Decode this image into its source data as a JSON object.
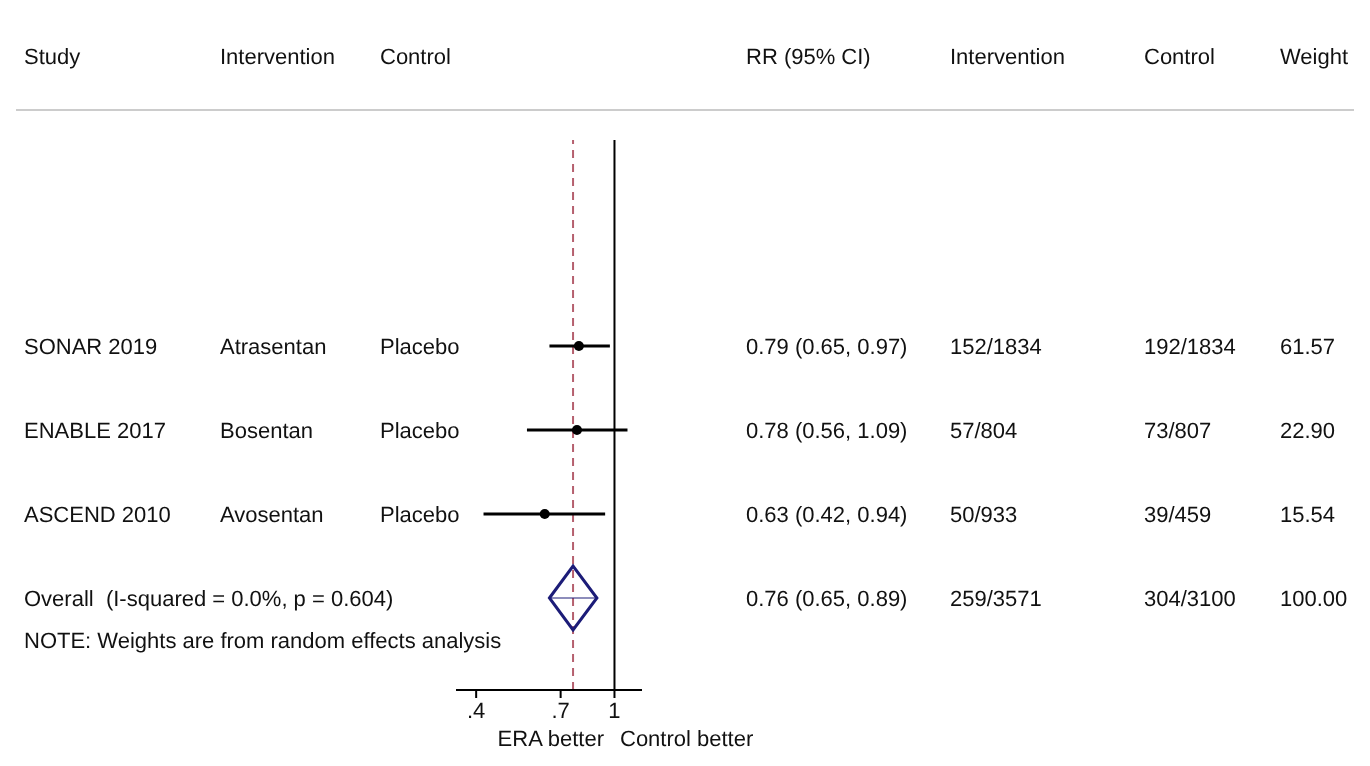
{
  "chart_data": {
    "type": "scatter",
    "categories": [
      "SONAR 2019",
      "ENABLE 2017",
      "ASCEND 2010",
      "Overall  (I-squared = 0.0%, p = 0.604)"
    ],
    "series": [
      {
        "color": "#000000",
        "marker": "circle",
        "values": [
          0.79,
          0.78,
          0.63,
          null
        ],
        "errors": [
          [
            0.65,
            0.97
          ],
          [
            0.56,
            1.09
          ],
          [
            0.42,
            0.94
          ],
          null
        ],
        "value_labels": [
          "0.79 (0.65, 0.97)",
          "0.78 (0.56, 1.09)",
          "0.63 (0.42, 0.94)",
          null
        ]
      },
      {
        "color": "#1c1c78",
        "marker": "diamond",
        "values": [
          null,
          null,
          null,
          0.76
        ],
        "errors": [
          null,
          null,
          null,
          [
            0.65,
            0.89
          ]
        ]
      }
    ],
    "orientation": "horizontal",
    "log": "x",
    "xlim": [
      0.35,
      1.2
    ],
    "xticks": [
      {
        "value": 0.4,
        "label": ".4"
      },
      {
        "value": 0.7,
        "label": ".7"
      },
      {
        "value": 1,
        "label": "1"
      }
    ],
    "ref_lines": [
      {
        "axis": "x",
        "value": 1,
        "color": "#000000",
        "line_style": "solid"
      },
      {
        "axis": "x",
        "value": 0.76,
        "color": "#b5606e",
        "line_style": "dashed"
      }
    ],
    "annotations": [
      "Study",
      "Intervention",
      "Control",
      "RR (95% CI)",
      "Intervention",
      "Control",
      "Weight",
      "Atrasentan",
      "Placebo",
      "152/1834",
      "192/1834",
      "61.57",
      "Bosentan",
      "Placebo",
      "57/804",
      "73/807",
      "22.90",
      "Avosentan",
      "Placebo",
      "50/933",
      "39/459",
      "15.54",
      "259/3571",
      "304/3100",
      "100.00",
      "NOTE: Weights are from random effects analysis",
      "ERA better",
      "Control better",
      "0.76 (0.65, 0.89)"
    ],
    "grid": false,
    "legend": false
  }
}
